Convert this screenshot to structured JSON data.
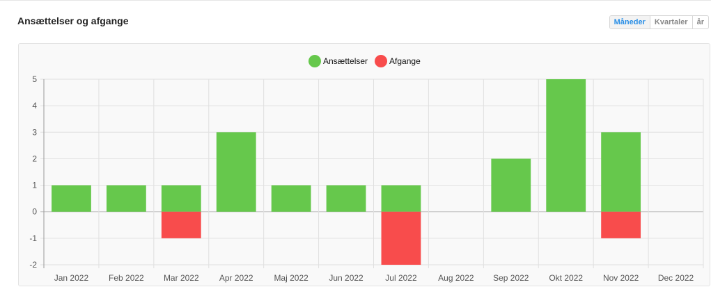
{
  "header": {
    "title": "Ansættelser og afgange",
    "periods": [
      "Måneder",
      "Kvartaler",
      "år"
    ],
    "selected": "Måneder"
  },
  "chart_data": {
    "type": "bar",
    "stacked": true,
    "categories": [
      "Jan 2022",
      "Feb 2022",
      "Mar 2022",
      "Apr 2022",
      "Maj 2022",
      "Jun 2022",
      "Jul 2022",
      "Aug 2022",
      "Sep 2022",
      "Okt 2022",
      "Nov 2022",
      "Dec 2022"
    ],
    "series": [
      {
        "name": "Ansættelser",
        "color": "#66c84c",
        "values": [
          1,
          1,
          1,
          3,
          1,
          1,
          1,
          0,
          2,
          5,
          3,
          0
        ]
      },
      {
        "name": "Afgange",
        "color": "#f84c4c",
        "values": [
          0,
          0,
          -1,
          0,
          0,
          0,
          -2,
          0,
          0,
          0,
          -1,
          0
        ]
      }
    ],
    "ylim": [
      -2,
      5
    ],
    "yticks": [
      5,
      4,
      3,
      2,
      1,
      0,
      -1,
      -2
    ],
    "grid": true,
    "legend": "top-center"
  }
}
